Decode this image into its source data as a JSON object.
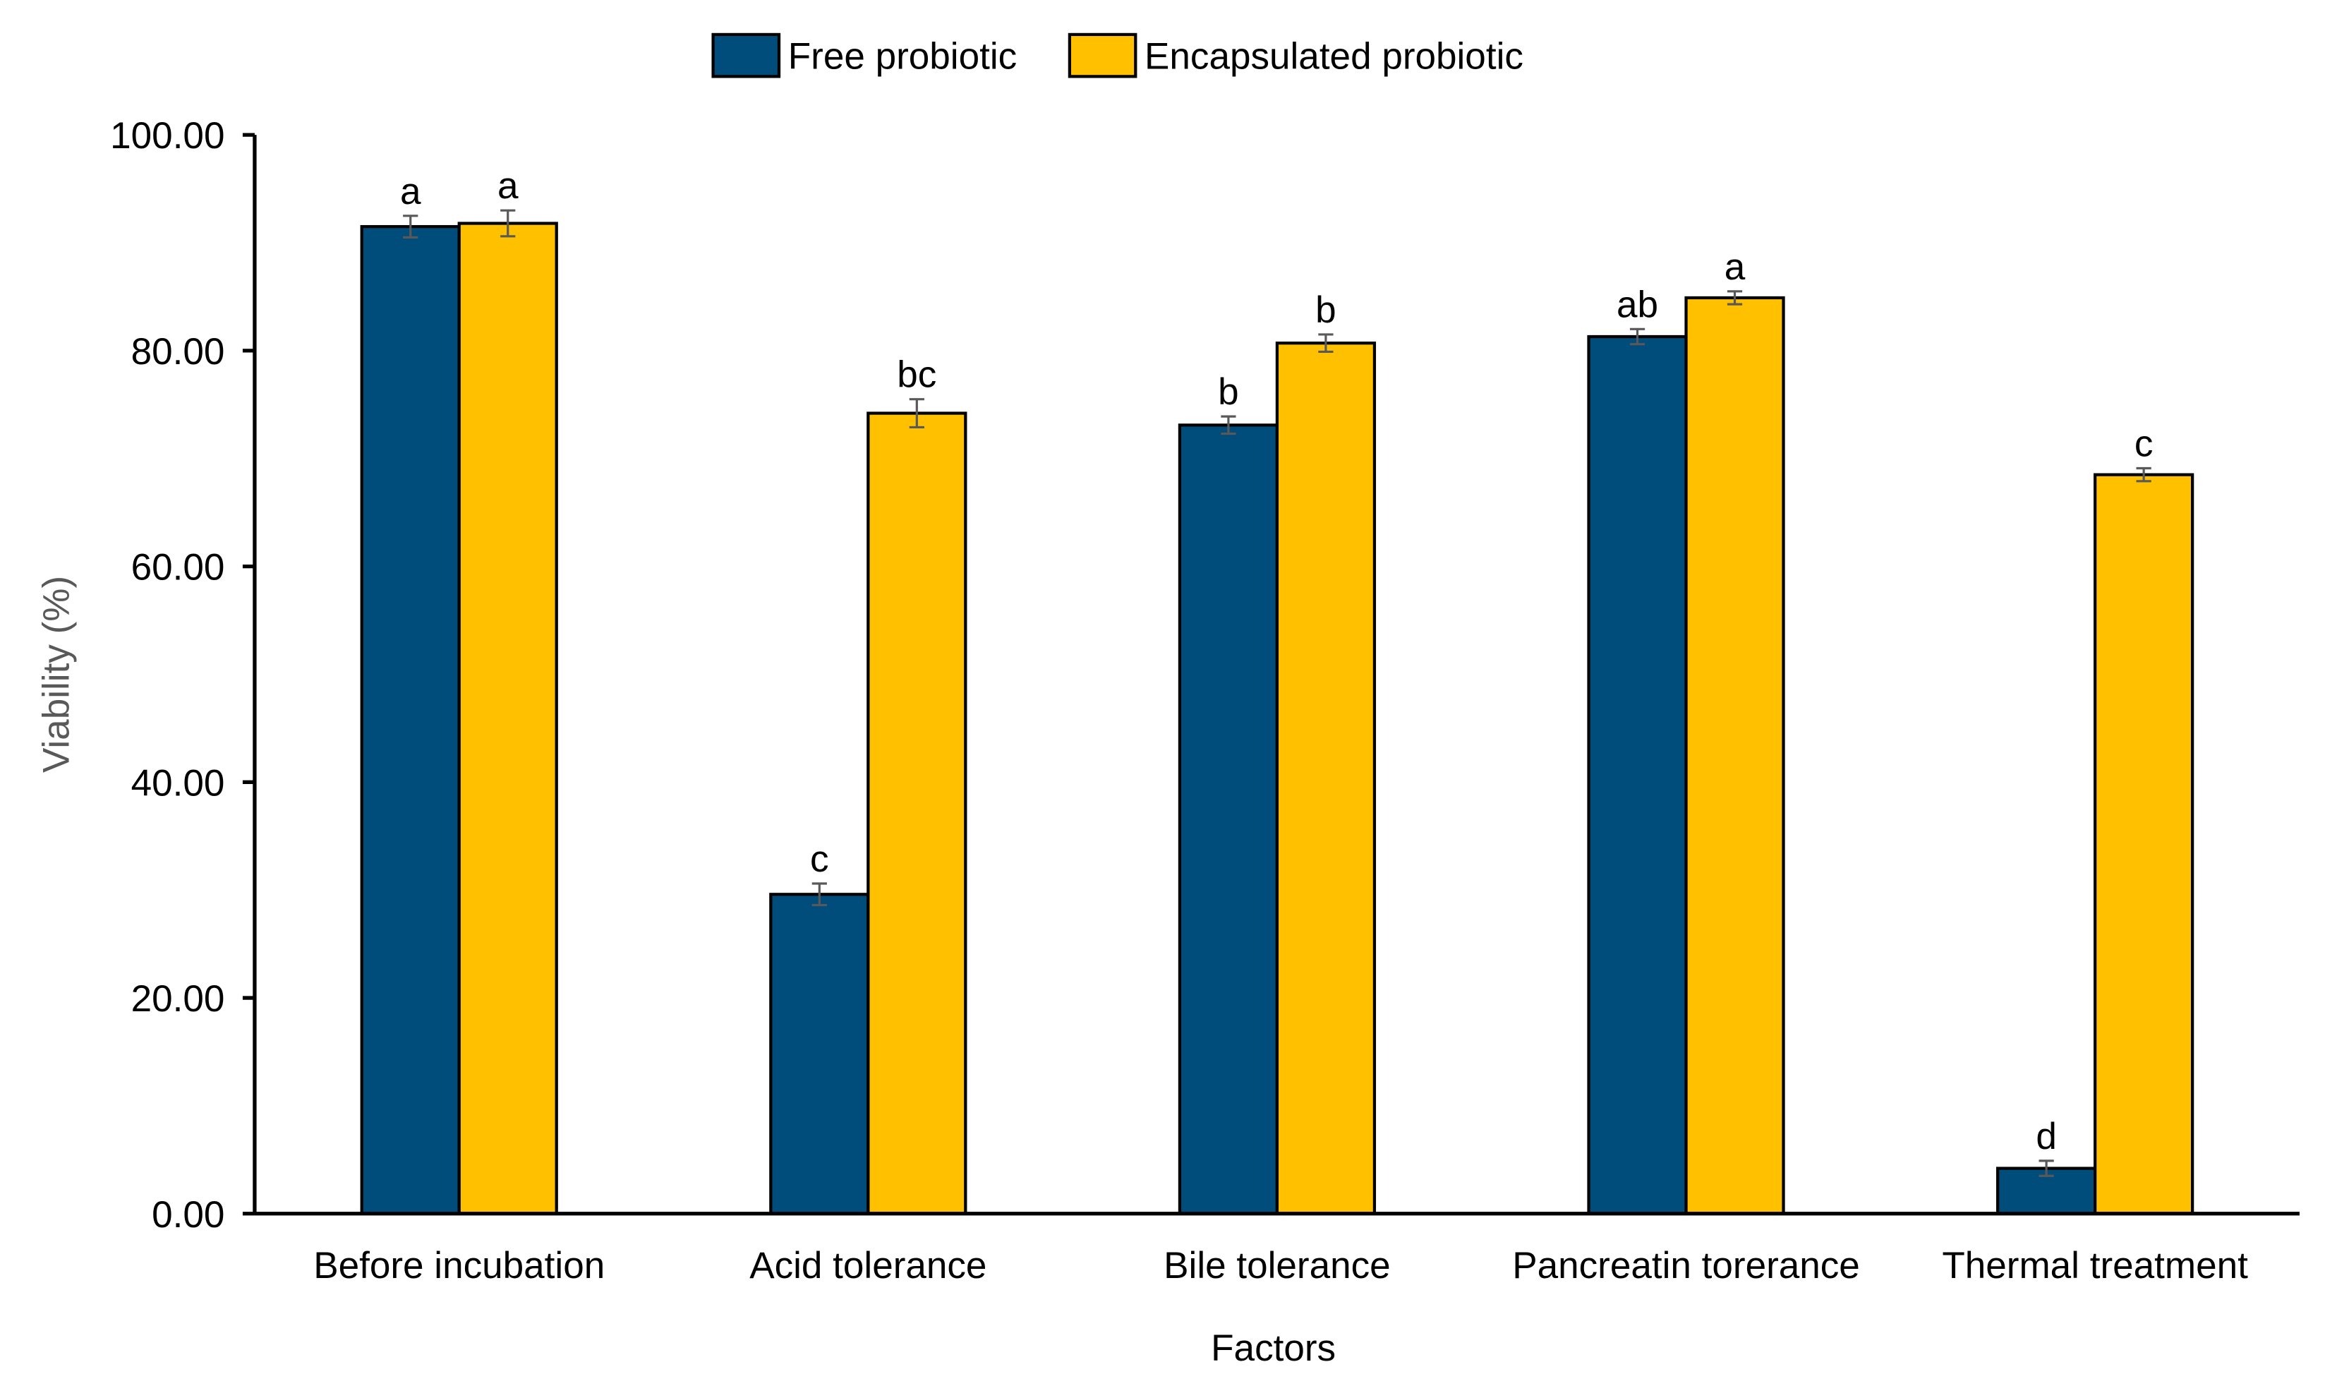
{
  "chart_data": {
    "type": "bar",
    "title": "",
    "xlabel": "Factors",
    "ylabel": "Viability (%)",
    "ylim": [
      0,
      100
    ],
    "yticks": [
      "0.00",
      "20.00",
      "40.00",
      "60.00",
      "80.00",
      "100.00"
    ],
    "ytick_values": [
      0,
      20,
      40,
      60,
      80,
      100
    ],
    "grid": false,
    "legend_position": "top",
    "categories": [
      "Before incubation",
      "Acid tolerance",
      "Bile tolerance",
      "Pancreatin torerance",
      "Thermal treatment"
    ],
    "series": [
      {
        "name": "Free probiotic",
        "color": "#004c7a",
        "values": [
          91.5,
          29.6,
          73.1,
          81.3,
          4.2
        ],
        "errors": [
          1.0,
          1.0,
          0.8,
          0.7,
          0.7
        ],
        "labels": [
          "a",
          "c",
          "b",
          "ab",
          "d"
        ]
      },
      {
        "name": "Encapsulated probiotic",
        "color": "#ffc000",
        "values": [
          91.8,
          74.2,
          80.7,
          84.9,
          68.5
        ],
        "errors": [
          1.2,
          1.3,
          0.8,
          0.6,
          0.6
        ],
        "labels": [
          "a",
          "bc",
          "b",
          "a",
          "c"
        ]
      }
    ]
  }
}
